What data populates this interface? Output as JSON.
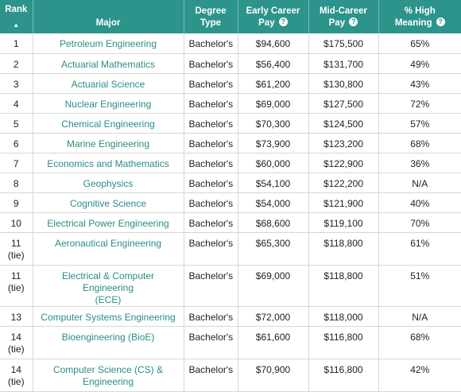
{
  "table": {
    "headers": {
      "rank": "Rank",
      "sort_indicator": "▲",
      "major": "Major",
      "degree_line1": "Degree",
      "degree_line2": "Type",
      "early_line1": "Early Career",
      "early_line2": "Pay",
      "mid_line1": "Mid-Career",
      "mid_line2": "Pay",
      "meaning_line1": "% High",
      "meaning_line2": "Meaning",
      "info_icon_glyph": "?"
    },
    "rows": [
      {
        "rank": "1",
        "rank_note": "",
        "major": "Petroleum Engineering",
        "major_line2": "",
        "degree": "Bachelor's",
        "early": "$94,600",
        "mid": "$175,500",
        "meaning": "65%"
      },
      {
        "rank": "2",
        "rank_note": "",
        "major": "Actuarial Mathematics",
        "major_line2": "",
        "degree": "Bachelor's",
        "early": "$56,400",
        "mid": "$131,700",
        "meaning": "49%"
      },
      {
        "rank": "3",
        "rank_note": "",
        "major": "Actuarial Science",
        "major_line2": "",
        "degree": "Bachelor's",
        "early": "$61,200",
        "mid": "$130,800",
        "meaning": "43%"
      },
      {
        "rank": "4",
        "rank_note": "",
        "major": "Nuclear Engineering",
        "major_line2": "",
        "degree": "Bachelor's",
        "early": "$69,000",
        "mid": "$127,500",
        "meaning": "72%"
      },
      {
        "rank": "5",
        "rank_note": "",
        "major": "Chemical Engineering",
        "major_line2": "",
        "degree": "Bachelor's",
        "early": "$70,300",
        "mid": "$124,500",
        "meaning": "57%"
      },
      {
        "rank": "6",
        "rank_note": "",
        "major": "Marine Engineering",
        "major_line2": "",
        "degree": "Bachelor's",
        "early": "$73,900",
        "mid": "$123,200",
        "meaning": "68%"
      },
      {
        "rank": "7",
        "rank_note": "",
        "major": "Economics and Mathematics",
        "major_line2": "",
        "degree": "Bachelor's",
        "early": "$60,000",
        "mid": "$122,900",
        "meaning": "36%"
      },
      {
        "rank": "8",
        "rank_note": "",
        "major": "Geophysics",
        "major_line2": "",
        "degree": "Bachelor's",
        "early": "$54,100",
        "mid": "$122,200",
        "meaning": "N/A"
      },
      {
        "rank": "9",
        "rank_note": "",
        "major": "Cognitive Science",
        "major_line2": "",
        "degree": "Bachelor's",
        "early": "$54,000",
        "mid": "$121,900",
        "meaning": "40%"
      },
      {
        "rank": "10",
        "rank_note": "",
        "major": "Electrical Power Engineering",
        "major_line2": "",
        "degree": "Bachelor's",
        "early": "$68,600",
        "mid": "$119,100",
        "meaning": "70%"
      },
      {
        "rank": "11",
        "rank_note": "(tie)",
        "major": "Aeronautical Engineering",
        "major_line2": "",
        "degree": "Bachelor's",
        "early": "$65,300",
        "mid": "$118,800",
        "meaning": "61%"
      },
      {
        "rank": "11",
        "rank_note": "(tie)",
        "major": "Electrical & Computer Engineering",
        "major_line2": "(ECE)",
        "degree": "Bachelor's",
        "early": "$69,000",
        "mid": "$118,800",
        "meaning": "51%"
      },
      {
        "rank": "13",
        "rank_note": "",
        "major": "Computer Systems Engineering",
        "major_line2": "",
        "degree": "Bachelor's",
        "early": "$72,000",
        "mid": "$118,000",
        "meaning": "N/A"
      },
      {
        "rank": "14",
        "rank_note": "(tie)",
        "major": "Bioengineering (BioE)",
        "major_line2": "",
        "degree": "Bachelor's",
        "early": "$61,600",
        "mid": "$116,800",
        "meaning": "68%"
      },
      {
        "rank": "14",
        "rank_note": "(tie)",
        "major": "Computer Science (CS) &",
        "major_line2": "Engineering",
        "degree": "Bachelor's",
        "early": "$70,900",
        "mid": "$116,800",
        "meaning": "42%"
      }
    ]
  },
  "colors": {
    "header_bg": "#2c948b",
    "link": "#2a8d86"
  }
}
